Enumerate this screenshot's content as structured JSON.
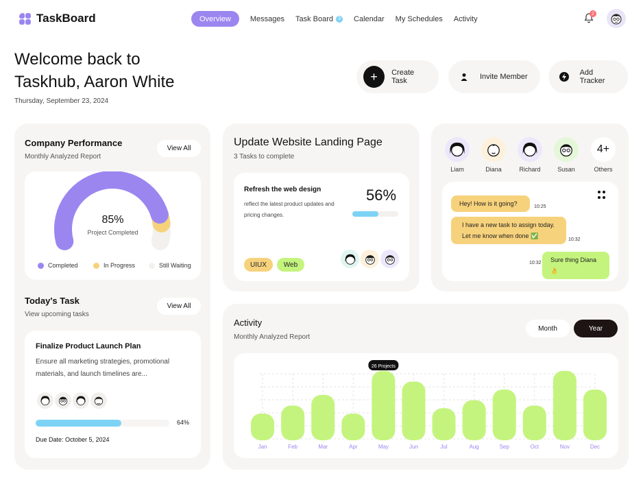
{
  "app": {
    "name": "TaskBoard"
  },
  "nav": {
    "items": [
      "Overview",
      "Messages",
      "Task Board",
      "Calendar",
      "My Schedules",
      "Activity"
    ],
    "task_board_badge": "3"
  },
  "notifications": {
    "count": "2"
  },
  "welcome": {
    "title": "Welcome back to Taskhub, Aaron White",
    "date": "Thursday, September 23, 2024"
  },
  "actions": {
    "create": "Create Task",
    "invite": "Invite Member",
    "tracker": "Add Tracker"
  },
  "performance": {
    "title": "Company Performance",
    "subtitle": "Monthly Analyzed Report",
    "view_all": "View All",
    "percent": "85%",
    "caption": "Project Completed",
    "gauge_value": 0.85,
    "legend": [
      "Completed",
      "In Progress",
      "Still Waiting"
    ],
    "colors": {
      "completed": "#9b86f0",
      "in_progress": "#f7d27c",
      "waiting": "#f3f1ee"
    }
  },
  "today": {
    "title": "Today's Task",
    "subtitle": "View upcoming tasks",
    "view_all": "View All",
    "task_title": "Finalize Product Launch Plan",
    "task_desc": "Ensure all marketing strategies, promotional materials, and launch timelines are...",
    "progress": "64%",
    "progress_value": 0.64,
    "due": "Due Date: October 5, 2024"
  },
  "project": {
    "title": "Update Website Landing Page",
    "subtitle": "3 Tasks to complete",
    "task_title": "Refresh the web design",
    "task_desc": "reflect the latest product updates and pricing changes.",
    "percent": "56%",
    "progress_value": 0.56,
    "tags": [
      "UIUX",
      "Web"
    ]
  },
  "chat": {
    "members": [
      "Liam",
      "Diana",
      "Richard",
      "Susan"
    ],
    "others_count": "4+",
    "others_label": "Others",
    "messages": [
      {
        "text": "Hey! How is it going?",
        "time": "10:25"
      },
      {
        "text": "I have a new task to assign today. Let me know when done ✅",
        "time": "10:32"
      },
      {
        "text": "Sure thing Diana👌",
        "time": "10:32"
      }
    ]
  },
  "activity": {
    "title": "Activity",
    "subtitle": "Monthly Analyzed Report",
    "toggle": [
      "Month",
      "Year"
    ],
    "tooltip": "26 Projects"
  },
  "chart_data": {
    "type": "bar",
    "categories": [
      "Jan",
      "Feb",
      "Mar",
      "Apr",
      "May",
      "Jun",
      "Jul",
      "Aug",
      "Sep",
      "Oct",
      "Nov",
      "Dec"
    ],
    "values": [
      10,
      13,
      17,
      10,
      26,
      22,
      12,
      15,
      19,
      13,
      26,
      19
    ],
    "ylim": [
      0,
      28
    ],
    "color": "#c4f47e",
    "label_color": "#9b86f0",
    "grid": true,
    "highlighted": "May"
  }
}
